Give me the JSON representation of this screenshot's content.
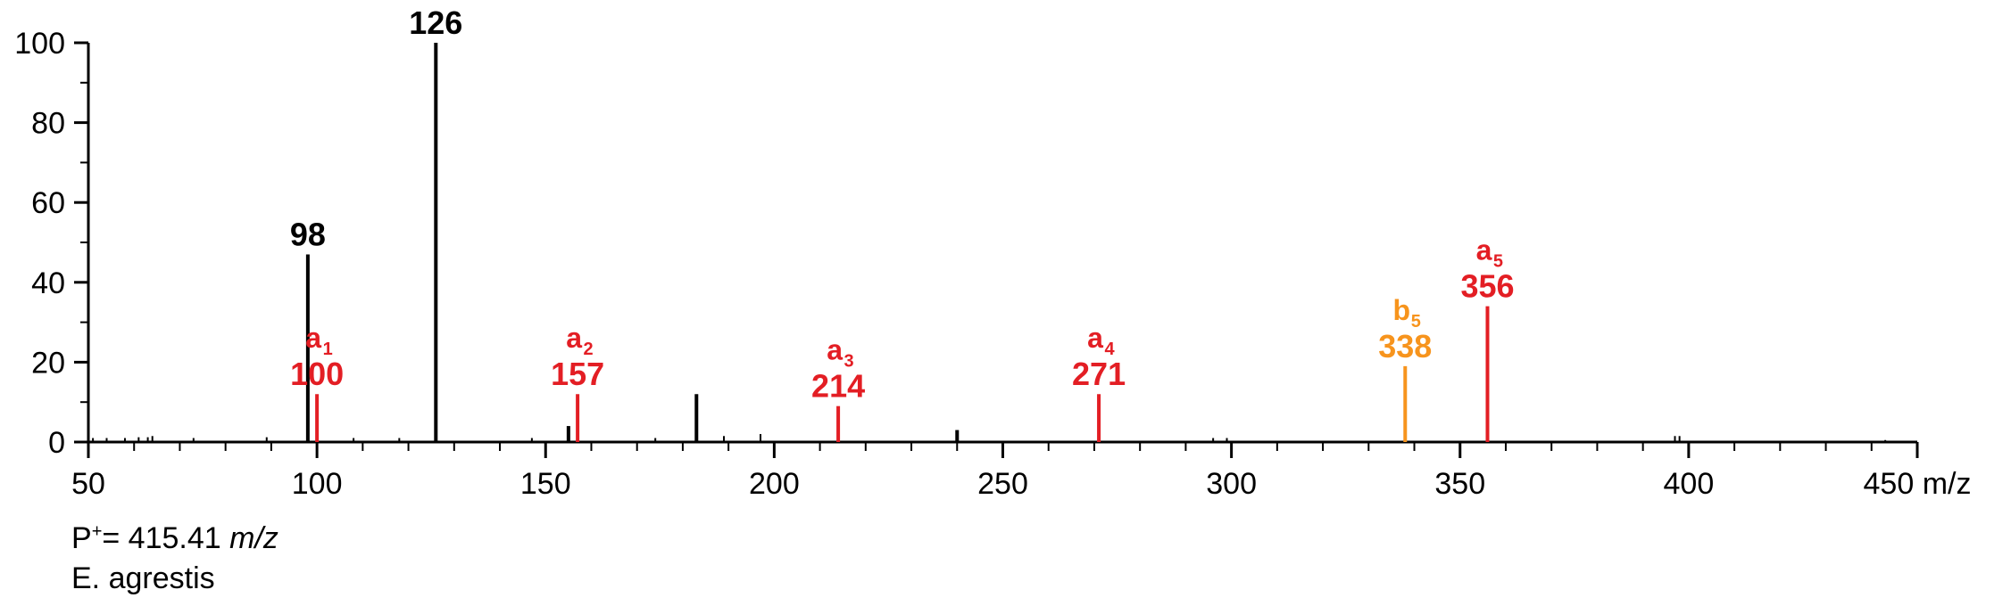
{
  "chart_data": {
    "type": "bar",
    "xlabel_unit": "m/z",
    "xlim": [
      50,
      450
    ],
    "ylim": [
      0,
      100
    ],
    "x_ticks": [
      50,
      100,
      150,
      200,
      250,
      300,
      350,
      400,
      450
    ],
    "y_ticks": [
      0,
      20,
      40,
      60,
      80,
      100
    ],
    "grid": false,
    "colors": {
      "unassigned": "#000000",
      "a_ion": "#e31e24",
      "b_ion": "#f7941d"
    },
    "peaks": [
      {
        "mz": 51,
        "intensity": 1,
        "type": "unassigned"
      },
      {
        "mz": 54,
        "intensity": 1,
        "type": "unassigned"
      },
      {
        "mz": 58,
        "intensity": 1,
        "type": "unassigned"
      },
      {
        "mz": 61,
        "intensity": 1.2,
        "type": "unassigned"
      },
      {
        "mz": 63,
        "intensity": 1.2,
        "type": "unassigned"
      },
      {
        "mz": 64,
        "intensity": 1.5,
        "type": "unassigned"
      },
      {
        "mz": 73,
        "intensity": 1,
        "type": "unassigned"
      },
      {
        "mz": 89,
        "intensity": 1.2,
        "type": "unassigned"
      },
      {
        "mz": 98,
        "intensity": 47,
        "type": "unassigned",
        "label": "98"
      },
      {
        "mz": 100,
        "intensity": 12,
        "type": "a",
        "ion": "a",
        "sub": "1",
        "label": "100"
      },
      {
        "mz": 108,
        "intensity": 1,
        "type": "unassigned"
      },
      {
        "mz": 118,
        "intensity": 1,
        "type": "unassigned"
      },
      {
        "mz": 126,
        "intensity": 100,
        "type": "unassigned",
        "label": "126"
      },
      {
        "mz": 147,
        "intensity": 1,
        "type": "unassigned"
      },
      {
        "mz": 155,
        "intensity": 4,
        "type": "unassigned"
      },
      {
        "mz": 157,
        "intensity": 12,
        "type": "a",
        "ion": "a",
        "sub": "2",
        "label": "157"
      },
      {
        "mz": 174,
        "intensity": 1,
        "type": "unassigned"
      },
      {
        "mz": 183,
        "intensity": 12,
        "type": "unassigned"
      },
      {
        "mz": 189,
        "intensity": 1.5,
        "type": "unassigned"
      },
      {
        "mz": 197,
        "intensity": 2,
        "type": "unassigned"
      },
      {
        "mz": 214,
        "intensity": 9,
        "type": "a",
        "ion": "a",
        "sub": "3",
        "label": "214"
      },
      {
        "mz": 240,
        "intensity": 3,
        "type": "unassigned"
      },
      {
        "mz": 271,
        "intensity": 12,
        "type": "a",
        "ion": "a",
        "sub": "4",
        "label": "271"
      },
      {
        "mz": 296,
        "intensity": 1,
        "type": "unassigned"
      },
      {
        "mz": 299,
        "intensity": 1,
        "type": "unassigned"
      },
      {
        "mz": 338,
        "intensity": 19,
        "type": "b",
        "ion": "b",
        "sub": "5",
        "label": "338"
      },
      {
        "mz": 356,
        "intensity": 34,
        "type": "a",
        "ion": "a",
        "sub": "5",
        "label": "356"
      },
      {
        "mz": 397,
        "intensity": 1.5,
        "type": "unassigned"
      },
      {
        "mz": 398,
        "intensity": 1.5,
        "type": "unassigned"
      },
      {
        "mz": 443,
        "intensity": 0.5,
        "type": "unassigned"
      }
    ]
  },
  "footer": {
    "precursor_prefix": "P",
    "precursor_charge": "+",
    "precursor_value": "= 415.41 ",
    "precursor_unit": "m/z",
    "species": "E. agrestis"
  }
}
